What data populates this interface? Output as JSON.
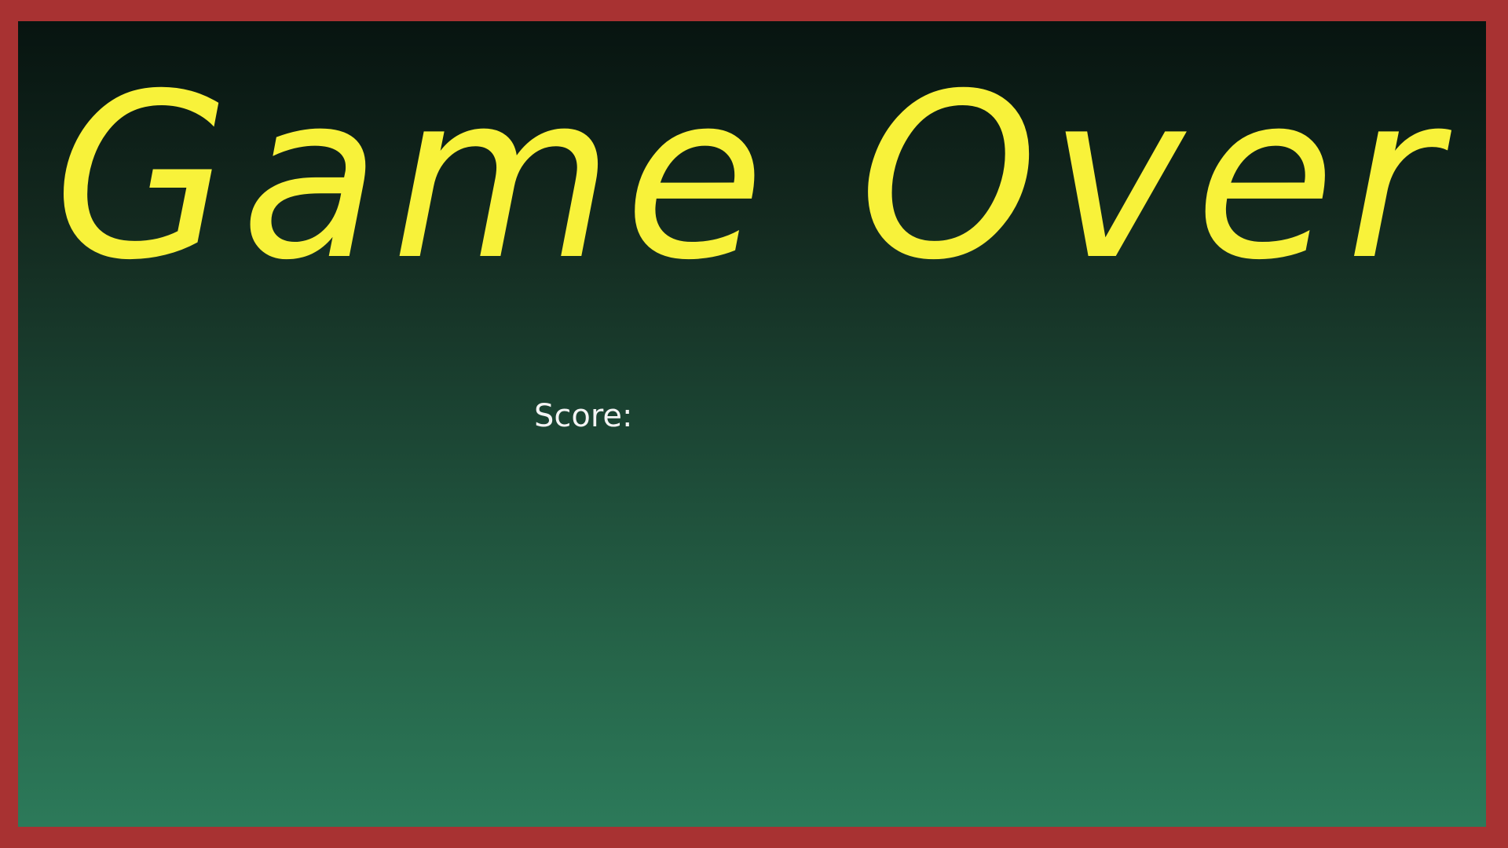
{
  "game_over_screen": {
    "title": "Game Over",
    "score_label": "Score:"
  },
  "colors": {
    "border": "#a83232",
    "title": "#f8f23a",
    "text": "#f4f4f4",
    "background_top": "#071410",
    "background_bottom": "#2c7a5a"
  }
}
